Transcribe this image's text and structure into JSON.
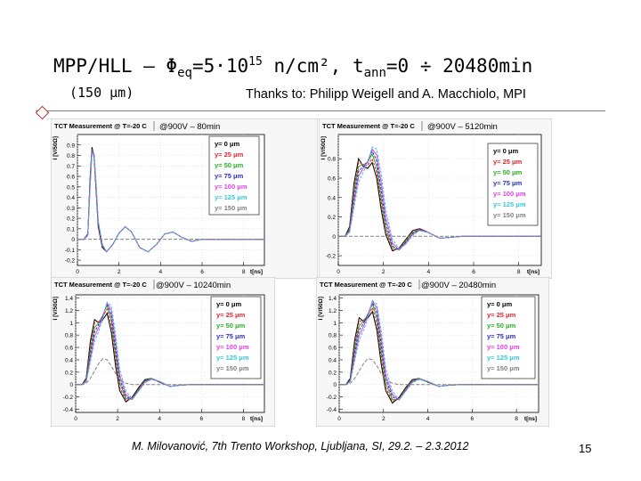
{
  "slide": {
    "title_main": "MPP/HLL – Φ",
    "title_sub": "eq",
    "title_mid": "=5·10",
    "title_sup": "15",
    "title_unit": " n/cm², t",
    "title_sub2": "ann",
    "title_end": "=0 ÷ 20480min",
    "subtitle_left": "(150 μm)",
    "subtitle_right": "Thanks to: Philipp Weigell and A. Macchiolo, MPI",
    "footer": "M. Milovanović, 7th Trento Workshop, Ljubljana, SI, 29.2. – 2.3.2012",
    "page_number": "15"
  },
  "legend_labels": [
    "y= 0  μm",
    "y= 25  μm",
    "y= 50  μm",
    "y= 75  μm",
    "y= 100  μm",
    "y= 125  μm",
    "y= 150  μm"
  ],
  "series_colors": [
    "#000000",
    "#e8222a",
    "#23b223",
    "#2d2dc8",
    "#e83ae8",
    "#35c8d8",
    "#808080"
  ],
  "chart_data": [
    {
      "type": "line",
      "title": "TCT Measurement @ T=-20 C",
      "annotation": "@900V – 80min",
      "xlabel": "t[ns]",
      "ylabel": "I [V/50Ω]",
      "xlim": [
        0,
        9
      ],
      "ylim": [
        -0.25,
        1.0
      ],
      "xticks": [
        0,
        2,
        4,
        6,
        8
      ],
      "yticks": [
        -0.2,
        -0.1,
        0,
        0.1,
        0.2,
        0.3,
        0.4,
        0.5,
        0.6,
        0.7,
        0.8,
        0.9
      ],
      "grid": true,
      "legend": "top-right",
      "x": [
        0,
        0.3,
        0.5,
        0.6,
        0.7,
        0.8,
        0.9,
        1.0,
        1.2,
        1.4,
        1.7,
        2.0,
        2.3,
        2.6,
        3.0,
        3.4,
        3.8,
        4.2,
        4.6,
        5.0,
        5.5,
        6.0,
        7.0,
        8.0,
        9.0
      ],
      "series": [
        {
          "name": "y= 0  μm",
          "values": [
            0,
            0,
            0.05,
            0.55,
            0.88,
            0.78,
            0.45,
            0.12,
            -0.08,
            -0.12,
            -0.05,
            0.06,
            0.12,
            0.07,
            -0.08,
            -0.12,
            -0.05,
            0.05,
            0.07,
            0.02,
            -0.02,
            0,
            0,
            0,
            0
          ]
        },
        {
          "name": "y= 25  μm",
          "values": [
            0,
            0,
            0.05,
            0.52,
            0.86,
            0.8,
            0.47,
            0.14,
            -0.07,
            -0.12,
            -0.05,
            0.06,
            0.12,
            0.07,
            -0.08,
            -0.12,
            -0.05,
            0.05,
            0.07,
            0.02,
            -0.02,
            0,
            0,
            0,
            0
          ]
        },
        {
          "name": "y= 50  μm",
          "values": [
            0,
            0,
            0.04,
            0.5,
            0.85,
            0.8,
            0.49,
            0.15,
            -0.06,
            -0.12,
            -0.05,
            0.06,
            0.12,
            0.07,
            -0.08,
            -0.12,
            -0.05,
            0.05,
            0.07,
            0.02,
            -0.02,
            0,
            0,
            0,
            0
          ]
        },
        {
          "name": "y= 75  μm",
          "values": [
            0,
            0,
            0.04,
            0.48,
            0.84,
            0.81,
            0.5,
            0.16,
            -0.06,
            -0.12,
            -0.05,
            0.06,
            0.12,
            0.07,
            -0.08,
            -0.12,
            -0.05,
            0.05,
            0.07,
            0.02,
            -0.02,
            0,
            0,
            0,
            0
          ]
        },
        {
          "name": "y= 100  μm",
          "values": [
            0,
            0,
            0.04,
            0.47,
            0.83,
            0.81,
            0.51,
            0.17,
            -0.05,
            -0.12,
            -0.05,
            0.06,
            0.12,
            0.07,
            -0.08,
            -0.12,
            -0.05,
            0.05,
            0.07,
            0.02,
            -0.02,
            0,
            0,
            0,
            0
          ]
        },
        {
          "name": "y= 125  μm",
          "values": [
            0,
            0,
            0.03,
            0.45,
            0.82,
            0.82,
            0.52,
            0.18,
            -0.05,
            -0.12,
            -0.05,
            0.06,
            0.12,
            0.07,
            -0.08,
            -0.12,
            -0.05,
            0.05,
            0.07,
            0.02,
            -0.02,
            0,
            0,
            0,
            0
          ]
        },
        {
          "name": "y= 150  μm",
          "values": [
            0,
            0,
            0,
            0,
            0,
            0,
            0,
            0,
            0,
            0,
            0,
            0,
            0,
            0,
            0,
            0,
            0,
            0,
            0,
            0,
            0,
            0,
            0,
            0,
            0
          ]
        }
      ]
    },
    {
      "type": "line",
      "title": "TCT Measurement @ T=-20 C",
      "annotation": "@900V – 5120min",
      "xlabel": "t[ns]",
      "ylabel": "I [V/50Ω]",
      "xlim": [
        0,
        9
      ],
      "ylim": [
        -0.3,
        1.05
      ],
      "xticks": [
        0,
        2,
        4,
        6,
        8
      ],
      "yticks": [
        -0.2,
        0,
        0.2,
        0.4,
        0.6,
        0.8
      ],
      "grid": true,
      "legend": "top-right",
      "x": [
        0,
        0.3,
        0.5,
        0.7,
        0.9,
        1.1,
        1.3,
        1.5,
        1.7,
        1.9,
        2.1,
        2.4,
        2.7,
        3.0,
        3.3,
        3.6,
        4.0,
        4.5,
        5.0,
        5.5,
        6.0,
        7.0,
        8.0,
        9.0
      ],
      "series": [
        {
          "name": "y= 0  μm",
          "values": [
            0,
            0,
            0.1,
            0.55,
            0.8,
            0.72,
            0.7,
            0.76,
            0.6,
            0.28,
            0.02,
            -0.15,
            -0.12,
            -0.03,
            0.06,
            0.08,
            0.04,
            -0.02,
            -0.01,
            0,
            0,
            0,
            0,
            0
          ]
        },
        {
          "name": "y= 25  μm",
          "values": [
            0,
            0,
            0.08,
            0.5,
            0.76,
            0.74,
            0.73,
            0.8,
            0.66,
            0.34,
            0.05,
            -0.14,
            -0.13,
            -0.04,
            0.05,
            0.08,
            0.04,
            -0.02,
            -0.01,
            0,
            0,
            0,
            0,
            0
          ]
        },
        {
          "name": "y= 50  μm",
          "values": [
            0,
            0,
            0.07,
            0.45,
            0.72,
            0.74,
            0.76,
            0.85,
            0.72,
            0.4,
            0.09,
            -0.12,
            -0.14,
            -0.05,
            0.04,
            0.07,
            0.04,
            -0.02,
            -0.01,
            0,
            0,
            0,
            0,
            0
          ]
        },
        {
          "name": "y= 75  μm",
          "values": [
            0,
            0,
            0.06,
            0.4,
            0.67,
            0.72,
            0.77,
            0.88,
            0.78,
            0.48,
            0.14,
            -0.1,
            -0.14,
            -0.06,
            0.03,
            0.07,
            0.04,
            -0.02,
            -0.01,
            0,
            0,
            0,
            0,
            0
          ]
        },
        {
          "name": "y= 100  μm",
          "values": [
            0,
            0,
            0.05,
            0.35,
            0.62,
            0.7,
            0.77,
            0.9,
            0.84,
            0.56,
            0.2,
            -0.07,
            -0.14,
            -0.07,
            0.02,
            0.06,
            0.04,
            -0.02,
            -0.01,
            0,
            0,
            0,
            0,
            0
          ]
        },
        {
          "name": "y= 125  μm",
          "values": [
            0,
            0,
            0.04,
            0.3,
            0.56,
            0.66,
            0.75,
            0.92,
            0.9,
            0.65,
            0.28,
            -0.03,
            -0.13,
            -0.08,
            0.01,
            0.06,
            0.04,
            -0.02,
            -0.01,
            0,
            0,
            0,
            0,
            0
          ]
        },
        {
          "name": "y= 150  μm",
          "values": [
            0,
            0,
            0,
            0,
            0,
            0,
            0,
            0,
            0,
            0,
            0,
            0,
            0,
            0,
            0,
            0,
            0,
            0,
            0,
            0,
            0,
            0,
            0,
            0
          ]
        }
      ]
    },
    {
      "type": "line",
      "title": "TCT Measurement @ T=-20 C",
      "annotation": "@900V – 10240min",
      "xlabel": "t[ns]",
      "ylabel": "I [V/50Ω]",
      "xlim": [
        0,
        9
      ],
      "ylim": [
        -0.45,
        1.45
      ],
      "xticks": [
        0,
        2,
        4,
        6,
        8
      ],
      "yticks": [
        -0.4,
        -0.2,
        0,
        0.2,
        0.4,
        0.6,
        0.8,
        1,
        1.2,
        1.4
      ],
      "grid": true,
      "legend": "top-right",
      "x": [
        0,
        0.3,
        0.5,
        0.7,
        0.9,
        1.1,
        1.3,
        1.5,
        1.7,
        1.9,
        2.1,
        2.4,
        2.7,
        3.0,
        3.3,
        3.6,
        4.0,
        4.5,
        5.0,
        5.5,
        6.0,
        7.0,
        8.0,
        9.0
      ],
      "series": [
        {
          "name": "y= 0  μm",
          "values": [
            0,
            0,
            0.1,
            0.7,
            1.05,
            1.0,
            1.05,
            1.15,
            0.85,
            0.3,
            -0.1,
            -0.28,
            -0.2,
            -0.05,
            0.08,
            0.1,
            0.04,
            -0.03,
            -0.01,
            0,
            0,
            0,
            0,
            0
          ]
        },
        {
          "name": "y= 25  μm",
          "values": [
            0,
            0,
            0.08,
            0.62,
            1.0,
            1.02,
            1.1,
            1.22,
            0.95,
            0.4,
            -0.05,
            -0.26,
            -0.22,
            -0.07,
            0.07,
            0.1,
            0.05,
            -0.03,
            -0.01,
            0,
            0,
            0,
            0,
            0
          ]
        },
        {
          "name": "y= 50  μm",
          "values": [
            0,
            0,
            0.07,
            0.55,
            0.92,
            1.0,
            1.12,
            1.28,
            1.05,
            0.5,
            0.02,
            -0.23,
            -0.23,
            -0.08,
            0.06,
            0.1,
            0.05,
            -0.03,
            -0.01,
            0,
            0,
            0,
            0,
            0
          ]
        },
        {
          "name": "y= 75  μm",
          "values": [
            0,
            0,
            0.06,
            0.48,
            0.85,
            0.97,
            1.12,
            1.3,
            1.12,
            0.6,
            0.08,
            -0.2,
            -0.24,
            -0.09,
            0.05,
            0.09,
            0.05,
            -0.03,
            -0.01,
            0,
            0,
            0,
            0,
            0
          ]
        },
        {
          "name": "y= 100  μm",
          "values": [
            0,
            0,
            0.05,
            0.42,
            0.78,
            0.92,
            1.1,
            1.32,
            1.2,
            0.7,
            0.15,
            -0.16,
            -0.24,
            -0.1,
            0.04,
            0.09,
            0.05,
            -0.03,
            -0.01,
            0,
            0,
            0,
            0,
            0
          ]
        },
        {
          "name": "y= 125  μm",
          "values": [
            0,
            0,
            0.04,
            0.36,
            0.7,
            0.86,
            1.06,
            1.33,
            1.27,
            0.82,
            0.24,
            -0.11,
            -0.23,
            -0.11,
            0.03,
            0.08,
            0.05,
            -0.03,
            -0.01,
            0,
            0,
            0,
            0,
            0
          ]
        },
        {
          "name": "y= 150  μm",
          "values": [
            0,
            0,
            0.02,
            0.1,
            0.22,
            0.34,
            0.42,
            0.4,
            0.3,
            0.18,
            0.08,
            0.02,
            0,
            0,
            0,
            0,
            0,
            0,
            0,
            0,
            0,
            0,
            0,
            0
          ]
        }
      ]
    },
    {
      "type": "line",
      "title": "TCT Measurement @ T=-20 C",
      "annotation": "@900V – 20480min",
      "xlabel": "t[ns]",
      "ylabel": "I [V/50Ω]",
      "xlim": [
        0,
        9
      ],
      "ylim": [
        -0.45,
        1.45
      ],
      "xticks": [
        0,
        2,
        4,
        6,
        8
      ],
      "yticks": [
        -0.4,
        -0.2,
        0,
        0.2,
        0.4,
        0.6,
        0.8,
        1,
        1.2,
        1.4
      ],
      "grid": true,
      "legend": "top-right",
      "x": [
        0,
        0.3,
        0.5,
        0.7,
        0.9,
        1.1,
        1.3,
        1.5,
        1.7,
        1.9,
        2.1,
        2.4,
        2.7,
        3.0,
        3.3,
        3.6,
        4.0,
        4.5,
        5.0,
        5.5,
        6.0,
        7.0,
        8.0,
        9.0
      ],
      "series": [
        {
          "name": "y= 0  μm",
          "values": [
            0,
            0,
            0.1,
            0.72,
            1.08,
            1.02,
            1.08,
            1.18,
            0.88,
            0.32,
            -0.1,
            -0.3,
            -0.21,
            -0.05,
            0.08,
            0.1,
            0.04,
            -0.03,
            -0.01,
            0,
            0,
            0,
            0,
            0
          ]
        },
        {
          "name": "y= 25  μm",
          "values": [
            0,
            0,
            0.08,
            0.64,
            1.02,
            1.04,
            1.12,
            1.24,
            0.98,
            0.42,
            -0.05,
            -0.27,
            -0.23,
            -0.07,
            0.07,
            0.1,
            0.05,
            -0.03,
            -0.01,
            0,
            0,
            0,
            0,
            0
          ]
        },
        {
          "name": "y= 50  μm",
          "values": [
            0,
            0,
            0.07,
            0.57,
            0.95,
            1.02,
            1.14,
            1.3,
            1.08,
            0.52,
            0.02,
            -0.24,
            -0.24,
            -0.08,
            0.06,
            0.1,
            0.05,
            -0.03,
            -0.01,
            0,
            0,
            0,
            0,
            0
          ]
        },
        {
          "name": "y= 75  μm",
          "values": [
            0,
            0,
            0.06,
            0.5,
            0.88,
            0.99,
            1.14,
            1.33,
            1.16,
            0.63,
            0.09,
            -0.2,
            -0.25,
            -0.09,
            0.05,
            0.09,
            0.05,
            -0.03,
            -0.01,
            0,
            0,
            0,
            0,
            0
          ]
        },
        {
          "name": "y= 100  μm",
          "values": [
            0,
            0,
            0.05,
            0.44,
            0.8,
            0.94,
            1.12,
            1.35,
            1.24,
            0.74,
            0.16,
            -0.16,
            -0.25,
            -0.1,
            0.04,
            0.09,
            0.05,
            -0.03,
            -0.01,
            0,
            0,
            0,
            0,
            0
          ]
        },
        {
          "name": "y= 125  μm",
          "values": [
            0,
            0,
            0.04,
            0.38,
            0.72,
            0.88,
            1.08,
            1.36,
            1.3,
            0.86,
            0.26,
            -0.11,
            -0.24,
            -0.11,
            0.03,
            0.08,
            0.05,
            -0.03,
            -0.01,
            0,
            0,
            0,
            0,
            0
          ]
        },
        {
          "name": "y= 150  μm",
          "values": [
            0,
            0,
            0.02,
            0.1,
            0.22,
            0.34,
            0.42,
            0.4,
            0.3,
            0.18,
            0.08,
            0.02,
            0,
            0,
            0,
            0,
            0,
            0,
            0,
            0,
            0,
            0,
            0,
            0
          ]
        }
      ]
    }
  ]
}
